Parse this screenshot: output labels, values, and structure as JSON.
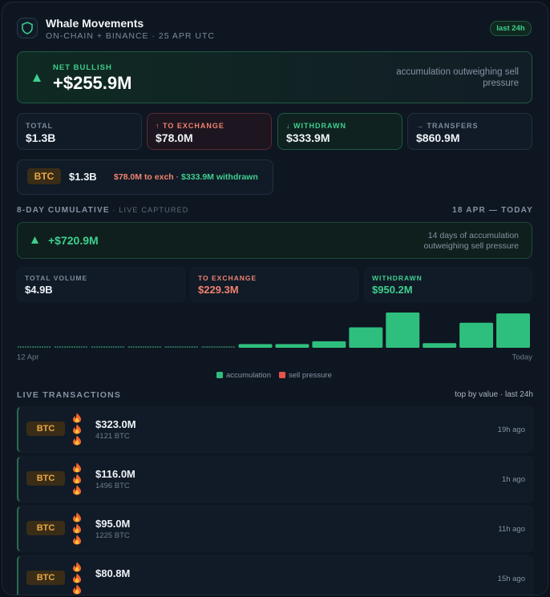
{
  "header": {
    "title": "Whale Movements",
    "subtitle": "ON-CHAIN + BINANCE · 25 APR UTC",
    "badge": "last 24h"
  },
  "net": {
    "label": "NET BULLISH",
    "value": "+$255.9M",
    "note": "accumulation outweighing sell pressure"
  },
  "stats": [
    {
      "label": "TOTAL",
      "value": "$1.3B"
    },
    {
      "label": "↑ TO EXCHANGE",
      "value": "$78.0M"
    },
    {
      "label": "↓ WITHDRAWN",
      "value": "$333.9M"
    },
    {
      "label": "→ TRANSFERS",
      "value": "$860.9M"
    }
  ],
  "asset": {
    "symbol": "BTC",
    "total": "$1.3B",
    "to_exchange": "$78.0M to exch",
    "separator": " · ",
    "withdrawn": "$333.9M withdrawn"
  },
  "cumulative": {
    "title": "8-DAY CUMULATIVE",
    "tag": " · LIVE CAPTURED",
    "range": "18 APR — TODAY",
    "value": "+$720.9M",
    "note": "14 days of accumulation outweighing sell pressure",
    "stats": [
      {
        "label": "TOTAL VOLUME",
        "value": "$4.9B"
      },
      {
        "label": "TO EXCHANGE",
        "value": "$229.3M"
      },
      {
        "label": "WITHDRAWN",
        "value": "$950.2M"
      }
    ]
  },
  "chart_data": {
    "type": "bar",
    "categories": [
      "12 Apr",
      null,
      null,
      null,
      null,
      null,
      null,
      null,
      null,
      null,
      null,
      null,
      null,
      "Today"
    ],
    "series": [
      {
        "name": "accumulation",
        "color": "#2ebf7e",
        "values": [
          0,
          0,
          0,
          0,
          0,
          0,
          20,
          20,
          35,
          110,
          190,
          25,
          135,
          185
        ]
      },
      {
        "name": "sell pressure",
        "color": "#e5534b",
        "values": [
          0,
          0,
          0,
          0,
          0,
          0,
          0,
          0,
          0,
          0,
          0,
          0,
          0,
          0
        ]
      }
    ]
  },
  "transactions": {
    "title": "LIVE TRANSACTIONS",
    "meta": "top by value · last 24h",
    "rows": [
      {
        "asset": "BTC",
        "value": "$323.0M",
        "amount": "4121 BTC",
        "time": "19h ago"
      },
      {
        "asset": "BTC",
        "value": "$116.0M",
        "amount": "1496 BTC",
        "time": "1h ago"
      },
      {
        "asset": "BTC",
        "value": "$95.0M",
        "amount": "1225 BTC",
        "time": "11h ago"
      },
      {
        "asset": "BTC",
        "value": "$80.8M",
        "time": "15h ago"
      }
    ]
  }
}
